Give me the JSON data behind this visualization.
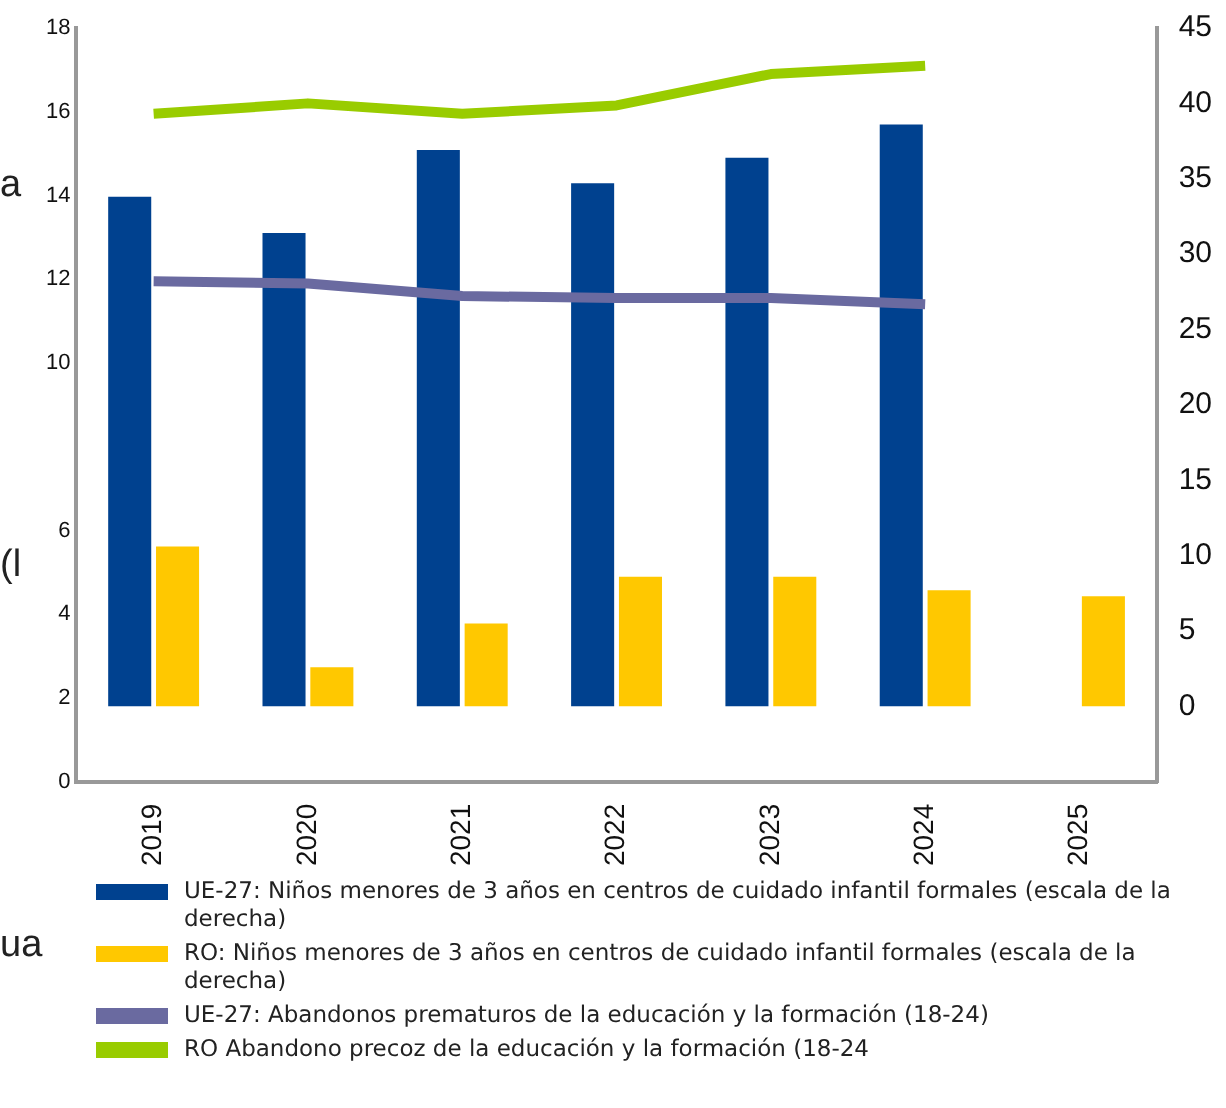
{
  "chart_data": {
    "type": "bar",
    "categories": [
      "2019",
      "2020",
      "2021",
      "2022",
      "2023",
      "2024",
      "2025"
    ],
    "series": [
      {
        "name": "UE-27: Niños menores de 3 años en centros de cuidado infantil formales (escala de la derecha)",
        "color": "#00418f",
        "axis": "y2",
        "values": [
          33.8,
          31.4,
          36.9,
          34.7,
          36.4,
          38.6,
          null
        ]
      },
      {
        "name": "RO: Niños menores de 3 años en centros de cuidado infantil formales (escala de la derecha)",
        "color": "#ffc800",
        "axis": "y2",
        "values": [
          10.6,
          2.6,
          5.5,
          8.6,
          8.6,
          7.7,
          7.3
        ]
      },
      {
        "name": "UE-27: Abandonos prematuros de la educación y la formación (18-24)",
        "color": "#6a6aa0",
        "type": "line",
        "values": [
          11.95,
          11.9,
          11.6,
          11.55,
          11.55,
          11.4,
          null
        ]
      },
      {
        "name": "RO Abandono precoz de la educación y la formación (18-24",
        "color": "#99cc00",
        "type": "line",
        "values": [
          15.95,
          16.2,
          15.95,
          16.15,
          16.9,
          17.1,
          null
        ]
      }
    ],
    "ylim": [
      0,
      18
    ],
    "yticks": [
      0,
      2,
      4,
      6,
      10,
      12,
      14,
      16,
      18
    ],
    "y2lim": [
      -5,
      45
    ],
    "y2ticks": [
      0,
      5,
      10,
      15,
      20,
      25,
      30,
      35,
      40,
      45
    ],
    "annotations": [
      "a",
      "(l",
      "ua"
    ],
    "grid": false,
    "legend": "bottom",
    "marker": "none"
  }
}
